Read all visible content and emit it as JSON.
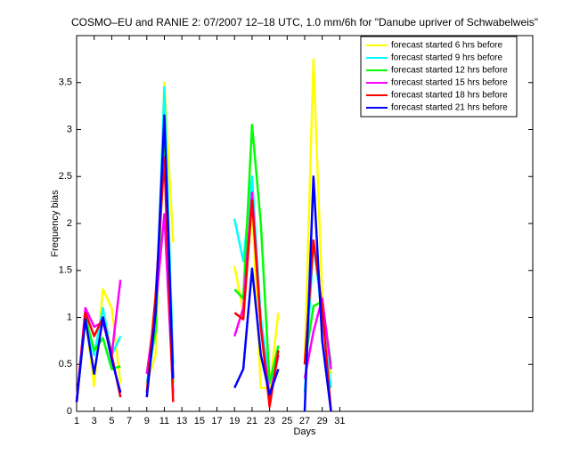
{
  "chart_data": {
    "type": "line",
    "title": "COSMO–EU and RANIE 2: 07/2007 12–18 UTC, 1.0 mm/6h for \"Danube upriver of Schwabelweis\"",
    "xlabel": "Days",
    "ylabel": "Frequency bias",
    "x": [
      1,
      2,
      3,
      4,
      5,
      6,
      7,
      8,
      9,
      10,
      11,
      12,
      13,
      14,
      15,
      16,
      17,
      18,
      19,
      20,
      21,
      22,
      23,
      24,
      25,
      26,
      27,
      28,
      29,
      30,
      31
    ],
    "xlim": [
      1,
      53
    ],
    "ylim": [
      0,
      4
    ],
    "xticks": [
      1,
      3,
      5,
      7,
      9,
      11,
      13,
      15,
      17,
      19,
      21,
      23,
      25,
      27,
      29,
      31
    ],
    "yticks": [
      0,
      0.5,
      1,
      1.5,
      2,
      2.5,
      3,
      3.5
    ],
    "legend_location": "northeast",
    "series": [
      {
        "name": "forecast started 6 hrs before",
        "color": "#ffff00",
        "values": [
          0.1,
          1.0,
          0.27,
          1.3,
          1.1,
          0.3,
          null,
          null,
          0.3,
          0.6,
          3.5,
          1.8,
          null,
          null,
          null,
          null,
          null,
          null,
          1.55,
          1.05,
          2.2,
          0.25,
          0.25,
          1.05,
          null,
          null,
          0.5,
          3.75,
          1.2,
          0.4,
          null
        ]
      },
      {
        "name": "forecast started 9 hrs before",
        "color": "#00ffff",
        "values": [
          0.1,
          1.0,
          0.6,
          1.1,
          0.6,
          0.8,
          null,
          null,
          0.3,
          0.85,
          3.45,
          0.5,
          null,
          null,
          null,
          null,
          null,
          null,
          2.05,
          1.6,
          2.5,
          1.0,
          0.3,
          0.6,
          null,
          null,
          0.2,
          1.8,
          1.0,
          0.25,
          null
        ]
      },
      {
        "name": "forecast started 12 hrs before",
        "color": "#00ff00",
        "values": [
          0.1,
          1.0,
          0.65,
          0.78,
          0.45,
          0.48,
          null,
          null,
          0.4,
          0.85,
          2.9,
          0.3,
          null,
          null,
          null,
          null,
          null,
          null,
          1.3,
          1.2,
          3.05,
          2.0,
          0.3,
          0.7,
          null,
          null,
          0.5,
          1.12,
          1.17,
          0.5,
          null
        ]
      },
      {
        "name": "forecast started 15 hrs before",
        "color": "#ff00ff",
        "values": [
          0.1,
          1.1,
          0.9,
          0.95,
          0.6,
          1.4,
          null,
          null,
          0.4,
          1.1,
          2.1,
          0.2,
          null,
          null,
          null,
          null,
          null,
          null,
          0.8,
          1.1,
          2.33,
          0.9,
          0.15,
          0.6,
          null,
          null,
          0.35,
          0.85,
          1.2,
          0.45,
          null
        ]
      },
      {
        "name": "forecast started 18 hrs before",
        "color": "#ff0000",
        "values": [
          0.1,
          1.05,
          0.8,
          1.0,
          0.6,
          0.15,
          null,
          null,
          0.2,
          1.23,
          2.7,
          0.1,
          null,
          null,
          null,
          null,
          null,
          null,
          1.05,
          0.98,
          2.25,
          0.9,
          0.05,
          0.65,
          null,
          null,
          0.5,
          1.82,
          1.1,
          0.0,
          null
        ]
      },
      {
        "name": "forecast started 21 hrs before",
        "color": "#0000ff",
        "values": [
          0.1,
          0.98,
          0.4,
          1.0,
          0.55,
          0.2,
          null,
          null,
          0.15,
          1.05,
          3.15,
          0.35,
          null,
          null,
          null,
          null,
          null,
          null,
          0.25,
          0.45,
          1.52,
          0.6,
          0.18,
          0.45,
          null,
          null,
          0.0,
          2.5,
          0.75,
          0.0,
          null
        ]
      }
    ]
  }
}
